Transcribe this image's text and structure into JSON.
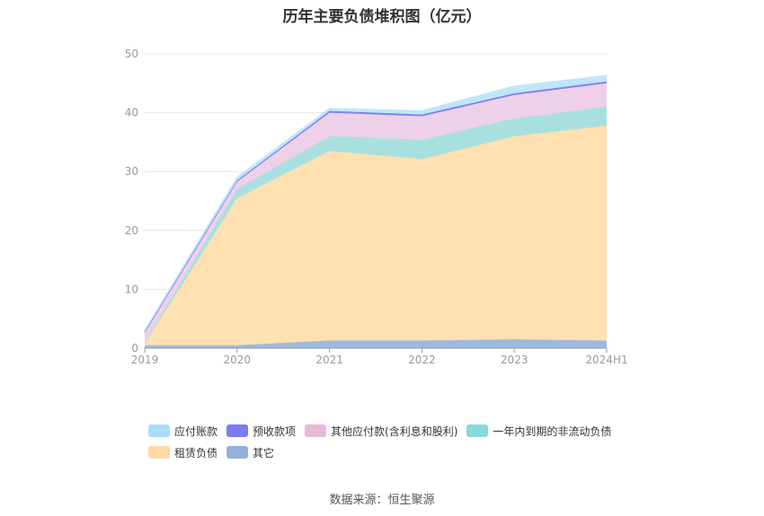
{
  "title": "历年主要负债堆积图（亿元）",
  "source": "数据来源：恒生聚源",
  "chart_data": {
    "type": "area",
    "stacked": true,
    "categories": [
      "2019",
      "2020",
      "2021",
      "2022",
      "2023",
      "2024H1"
    ],
    "ylim": [
      0,
      50
    ],
    "yticks": [
      "0",
      "10",
      "20",
      "30",
      "40",
      "50"
    ],
    "grid": true,
    "legend_position": "bottom",
    "series": [
      {
        "name": "其它",
        "color": "#9eb9e0",
        "values": [
          0.5,
          0.5,
          1.3,
          1.3,
          1.5,
          1.3
        ]
      },
      {
        "name": "租赁负债",
        "color": "#ffe0b0",
        "values": [
          0.3,
          25.0,
          32.2,
          30.8,
          34.5,
          36.5
        ]
      },
      {
        "name": "一年内到期的非流动负债",
        "color": "#a8e0e0",
        "values": [
          0.2,
          1.5,
          2.5,
          3.3,
          3.0,
          3.2
        ]
      },
      {
        "name": "其他应付款(含利息和股利)",
        "color": "#eed0e8",
        "values": [
          1.6,
          1.3,
          4.0,
          4.0,
          4.0,
          4.0
        ]
      },
      {
        "name": "预收款项",
        "color": "#8080f0",
        "values": [
          0.2,
          0.2,
          0.3,
          0.3,
          0.3,
          0.3
        ]
      },
      {
        "name": "应付账款",
        "color": "#bfe6fa",
        "values": [
          0.2,
          0.5,
          0.4,
          0.6,
          1.2,
          1.0
        ]
      }
    ],
    "legend": [
      {
        "name": "应付账款",
        "color": "#a8ddf8"
      },
      {
        "name": "预收款项",
        "color": "#7a7cf0"
      },
      {
        "name": "其他应付款(含利息和股利)",
        "color": "#e8b8d8"
      },
      {
        "name": "一年内到期的非流动负债",
        "color": "#88d8d8"
      },
      {
        "name": "租赁负债",
        "color": "#ffd9a0"
      },
      {
        "name": "其它",
        "color": "#92b0dc"
      }
    ]
  }
}
